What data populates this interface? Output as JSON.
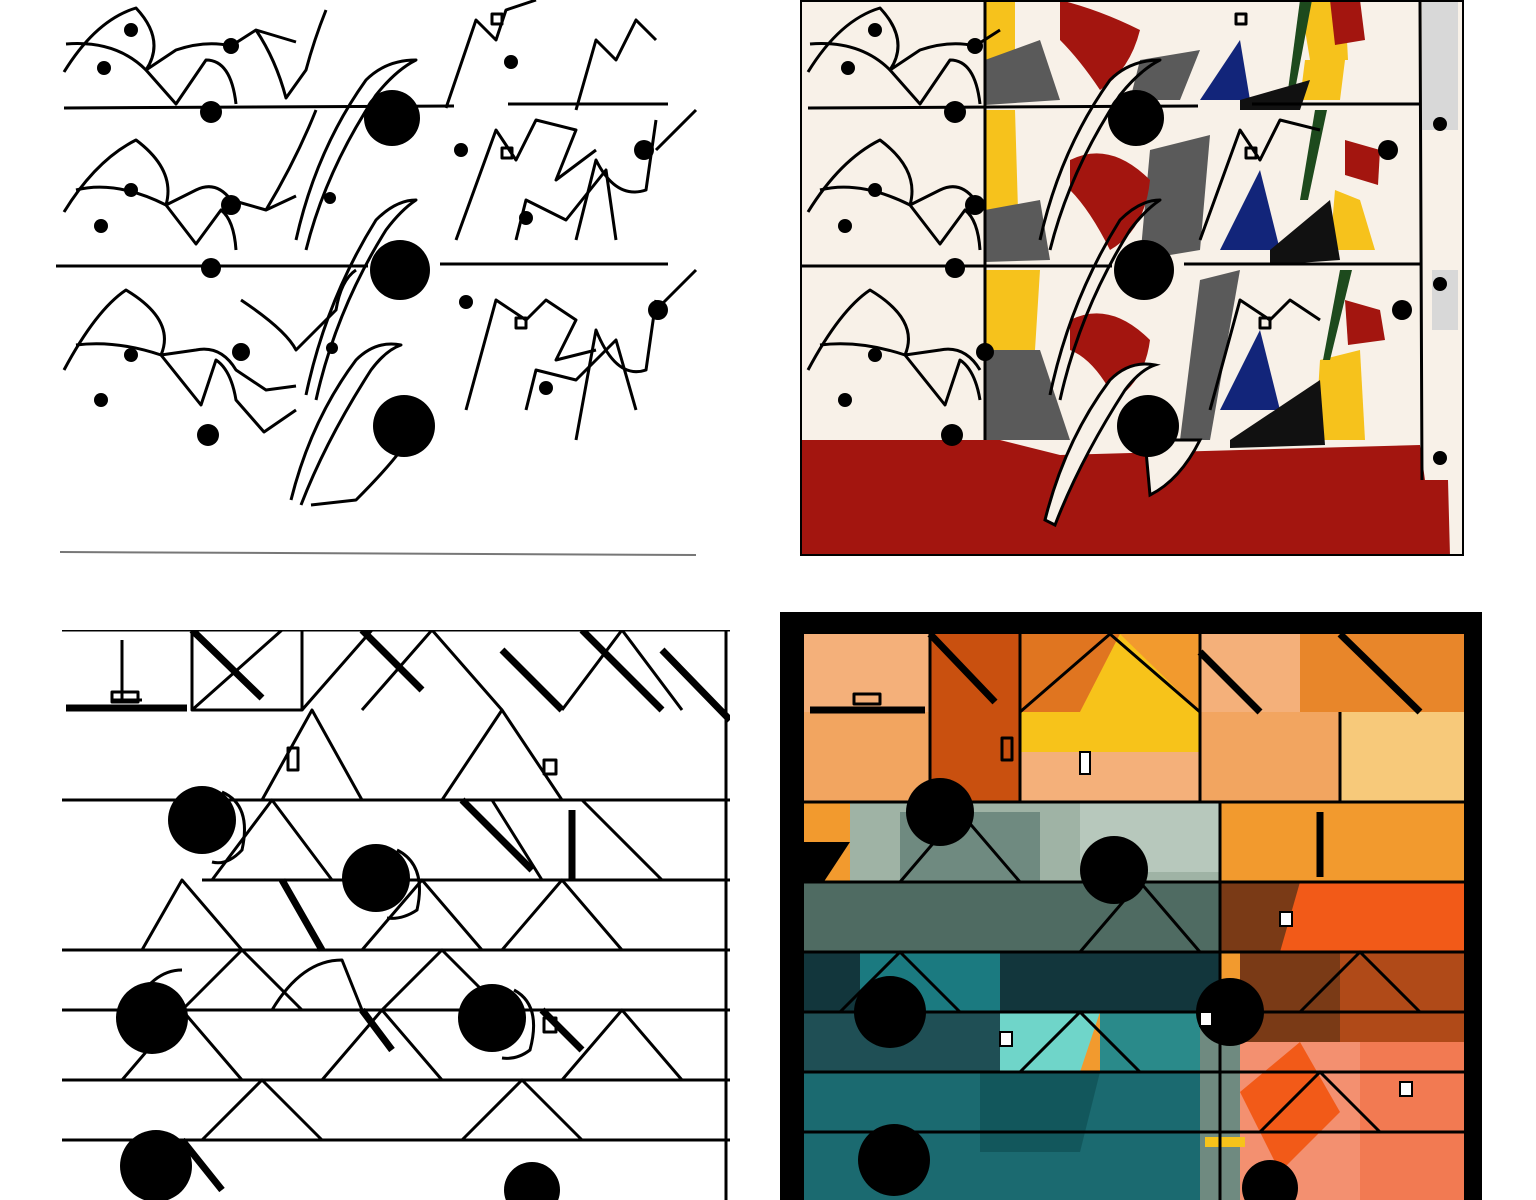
{
  "artwork": {
    "panels": [
      {
        "id": "line-drawing-arches",
        "style": "black ink on white",
        "colored": false
      },
      {
        "id": "colored-arches",
        "style": "colored version",
        "colored": true,
        "palette": {
          "background": "#f8f1e8",
          "red": "#a3150f",
          "yellow": "#f6c21c",
          "gray": "#5a5a5a",
          "black": "#111111",
          "blue": "#12257a",
          "green": "#1d4a1d",
          "light_gray": "#d8d8d8"
        }
      },
      {
        "id": "line-drawing-pyramids",
        "style": "black ink on white",
        "colored": false
      },
      {
        "id": "colored-pyramids",
        "style": "colored version",
        "colored": true,
        "palette": {
          "frame": "#000000",
          "orange": "#f29a2e",
          "dark_orange": "#c9500f",
          "peach": "#f4b07a",
          "yellow": "#f7c31a",
          "sage": "#9fb3a5",
          "slate": "#4f6b62",
          "teal": "#1b7a80",
          "aqua": "#6fd5c9",
          "dark_teal": "#12363c",
          "red_orange": "#f25a18",
          "brown": "#7a3a16",
          "salmon": "#f39070"
        }
      }
    ]
  }
}
